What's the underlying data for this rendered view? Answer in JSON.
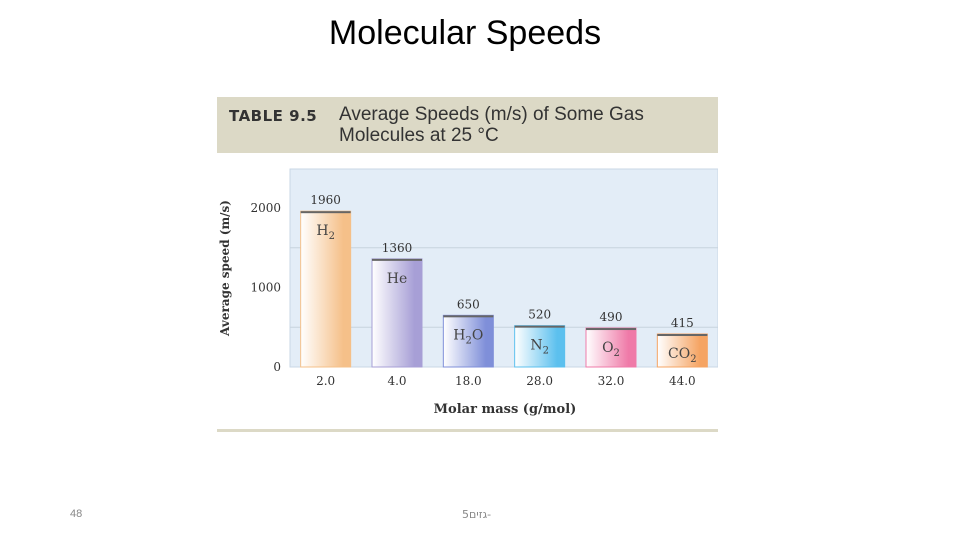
{
  "slide": {
    "title": "Molecular Speeds",
    "page_number": "48",
    "footer": "גזים5-"
  },
  "table": {
    "label": "TABLE 9.5",
    "caption": "Average Speeds (m/s) of Some Gas Molecules at 25 °C"
  },
  "chart_data": {
    "type": "bar",
    "xlabel": "Molar mass (g/mol)",
    "ylabel": "Average speed (m/s)",
    "ylim": [
      0,
      2000
    ],
    "yticks": [
      0,
      1000,
      2000
    ],
    "gridlines": [
      500,
      1500
    ],
    "categories": [
      "2.0",
      "4.0",
      "18.0",
      "28.0",
      "32.0",
      "44.0"
    ],
    "bars": [
      {
        "molecule": "H",
        "subscript": "2",
        "suffix": "",
        "value": 1960,
        "label": "1960",
        "color": "#f5c089"
      },
      {
        "molecule": "He",
        "subscript": "",
        "suffix": "",
        "value": 1360,
        "label": "1360",
        "color": "#a79fd6"
      },
      {
        "molecule": "H",
        "subscript": "2",
        "suffix": "O",
        "value": 650,
        "label": "650",
        "color": "#7f8fd9"
      },
      {
        "molecule": "N",
        "subscript": "2",
        "suffix": "",
        "value": 520,
        "label": "520",
        "color": "#5cc0ee"
      },
      {
        "molecule": "O",
        "subscript": "2",
        "suffix": "",
        "value": 490,
        "label": "490",
        "color": "#ef7aa8"
      },
      {
        "molecule": "CO",
        "subscript": "2",
        "suffix": "",
        "value": 415,
        "label": "415",
        "color": "#f5a463"
      }
    ]
  }
}
